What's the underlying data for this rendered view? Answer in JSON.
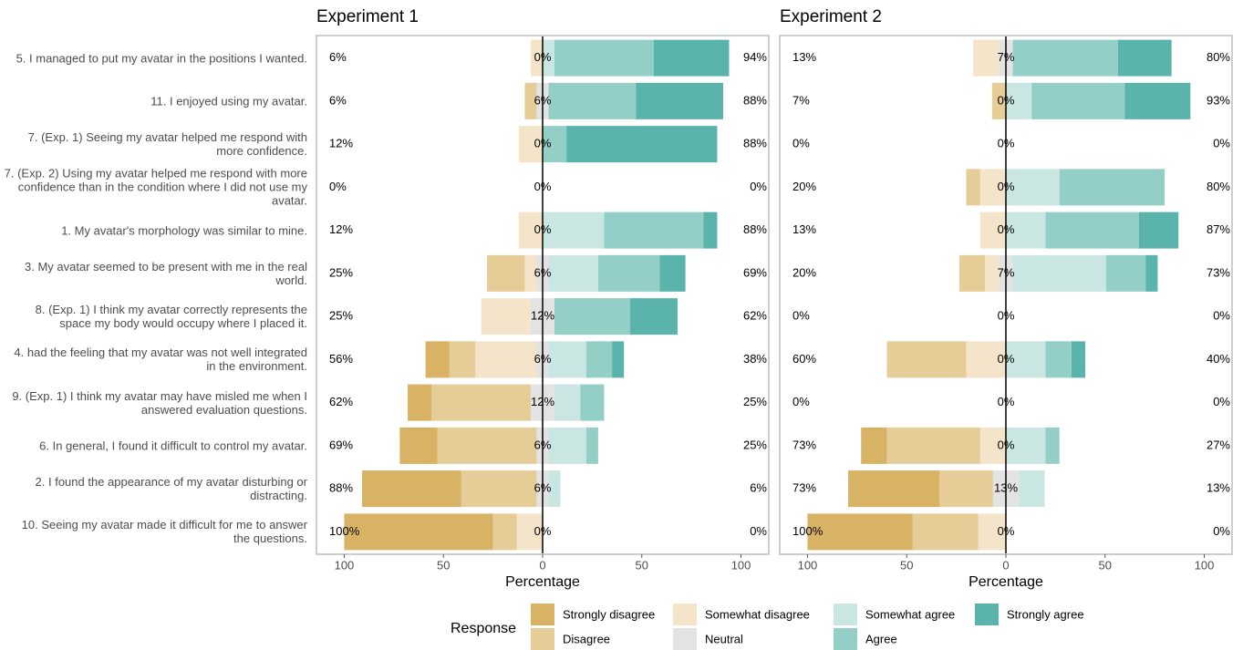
{
  "chart_data": {
    "type": "likert",
    "categories": [
      "5. I managed to put my avatar in the positions I wanted.",
      "11. I enjoyed using my avatar.",
      "7. (Exp. 1) Seeing my avatar helped me respond with more confidence.",
      "7. (Exp. 2) Using my avatar helped me respond with more confidence than in the condition where I did not use my avatar.",
      "1. My avatar's morphology was similar to mine.",
      "3. My avatar seemed to be present with me in the real world.",
      "8. (Exp. 1) I think my avatar correctly represents the space my body would occupy where I placed it.",
      "4. had the feeling that my avatar was not well integrated in the environment.",
      "9. (Exp. 1) I think my avatar may have misled me when I answered evaluation questions.",
      "6. In general, I found it difficult to control my avatar.",
      "2. I found the appearance of my avatar disturbing or distracting.",
      "10. Seeing my avatar made it difficult for me to answer the questions."
    ],
    "xlabel": "Percentage",
    "legend_title": "Response",
    "xlim": [
      -114,
      114
    ],
    "xticks": [
      {
        "value": -100,
        "label": "100"
      },
      {
        "value": -50,
        "label": "50"
      },
      0,
      50,
      100
    ],
    "series": [
      {
        "name": "Strongly disagree",
        "color": "#d8b365"
      },
      {
        "name": "Disagree",
        "color": "#e6cc96"
      },
      {
        "name": "Somewhat disagree",
        "color": "#f4e4c9"
      },
      {
        "name": "Neutral",
        "color": "#e3e3e3"
      },
      {
        "name": "Somewhat agree",
        "color": "#c9e6e3"
      },
      {
        "name": "Agree",
        "color": "#93cfc7"
      },
      {
        "name": "Strongly agree",
        "color": "#5ab4ac"
      }
    ],
    "panels": [
      {
        "title": "Experiment 1",
        "values": [
          [
            0,
            0,
            0,
            0,
            0,
            0,
            0,
            12,
            12,
            19,
            50,
            75
          ],
          [
            0,
            6,
            0,
            0,
            0,
            19,
            0,
            13,
            50,
            50,
            38,
            12
          ],
          [
            6,
            0,
            12,
            0,
            12,
            6,
            25,
            31,
            0,
            0,
            0,
            13
          ],
          [
            0,
            6,
            0,
            0,
            0,
            6,
            12,
            6,
            12,
            6,
            6,
            0
          ],
          [
            6,
            0,
            0,
            0,
            31,
            25,
            0,
            19,
            13,
            19,
            6,
            0
          ],
          [
            50,
            44,
            12,
            0,
            50,
            31,
            38,
            13,
            12,
            6,
            0,
            0
          ],
          [
            38,
            44,
            76,
            0,
            7,
            13,
            24,
            6,
            0,
            0,
            0,
            0
          ]
        ],
        "low_labels": [
          "6%",
          "6%",
          "12%",
          "0%",
          "12%",
          "25%",
          "25%",
          "56%",
          "62%",
          "69%",
          "88%",
          "100%"
        ],
        "mid_labels": [
          "0%",
          "6%",
          "0%",
          "0%",
          "0%",
          "6%",
          "12%",
          "6%",
          "12%",
          "6%",
          "6%",
          "0%"
        ],
        "high_labels": [
          "94%",
          "88%",
          "88%",
          "0%",
          "88%",
          "69%",
          "62%",
          "38%",
          "25%",
          "25%",
          "6%",
          "0%"
        ]
      },
      {
        "title": "Experiment 2",
        "values": [
          [
            0,
            0,
            0,
            0,
            0,
            0,
            0,
            0,
            0,
            13,
            46,
            53
          ],
          [
            0,
            7,
            0,
            7,
            0,
            13,
            0,
            40,
            0,
            47,
            27,
            33
          ],
          [
            13,
            0,
            0,
            13,
            13,
            7,
            0,
            20,
            0,
            13,
            0,
            14
          ],
          [
            7,
            0,
            0,
            0,
            0,
            7,
            0,
            0,
            0,
            0,
            13,
            0
          ],
          [
            0,
            13,
            0,
            27,
            20,
            47,
            0,
            20,
            0,
            20,
            13,
            0
          ],
          [
            53,
            47,
            0,
            53,
            47,
            20,
            0,
            13,
            0,
            7,
            0,
            0
          ],
          [
            27,
            33,
            0,
            0,
            20,
            6,
            0,
            7,
            0,
            0,
            0,
            0
          ]
        ],
        "low_labels": [
          "13%",
          "7%",
          "0%",
          "20%",
          "13%",
          "20%",
          "0%",
          "60%",
          "0%",
          "73%",
          "73%",
          "100%"
        ],
        "mid_labels": [
          "7%",
          "0%",
          "0%",
          "0%",
          "0%",
          "7%",
          "0%",
          "0%",
          "0%",
          "0%",
          "13%",
          "0%"
        ],
        "high_labels": [
          "80%",
          "93%",
          "0%",
          "80%",
          "87%",
          "73%",
          "0%",
          "40%",
          "0%",
          "27%",
          "13%",
          "0%"
        ]
      }
    ]
  }
}
